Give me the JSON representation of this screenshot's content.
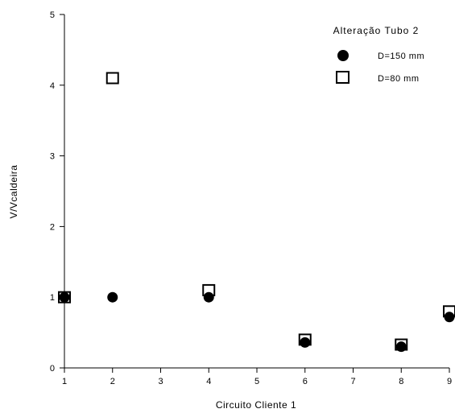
{
  "chart_data": {
    "type": "scatter",
    "title": "",
    "xlabel": "Circuito Cliente 1",
    "ylabel": "V/Vcaldeira",
    "xlim": [
      1,
      9
    ],
    "ylim": [
      0,
      5
    ],
    "xticks": [
      1,
      2,
      3,
      4,
      5,
      6,
      7,
      8,
      9
    ],
    "yticks": [
      0,
      1,
      2,
      3,
      4,
      5
    ],
    "grid": false,
    "legend": {
      "title": "Alteração Tubo 2",
      "placement": "top-right"
    },
    "series": [
      {
        "name": "D=150 mm",
        "marker": "filled-circle",
        "color": "#000000",
        "x": [
          1,
          2,
          4,
          6,
          8,
          9
        ],
        "y": [
          1.0,
          1.0,
          1.0,
          0.36,
          0.3,
          0.72
        ]
      },
      {
        "name": "D=80 mm",
        "marker": "open-square",
        "color": "#000000",
        "x": [
          1,
          2,
          4,
          6,
          8,
          9
        ],
        "y": [
          1.0,
          4.1,
          1.1,
          0.4,
          0.33,
          0.8
        ]
      }
    ]
  }
}
